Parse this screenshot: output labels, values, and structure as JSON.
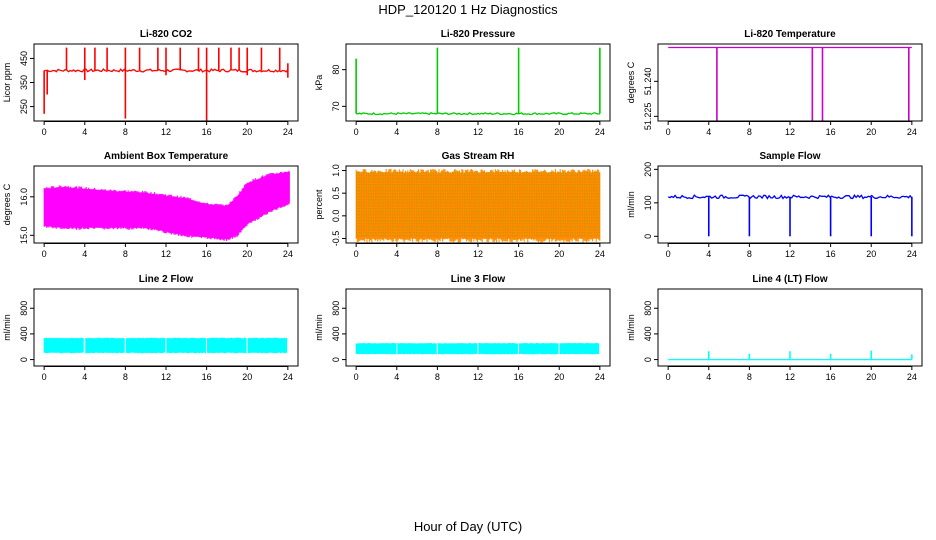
{
  "figure": {
    "title": "HDP_120120  1 Hz Diagnostics",
    "xlabel": "Hour of Day (UTC)"
  },
  "chart_data": [
    {
      "type": "line",
      "title": "Li-820 CO2",
      "ylabel": "Licor ppm",
      "color": "#ff0000",
      "xlim": [
        -1,
        25
      ],
      "ylim": [
        190,
        510
      ],
      "x_ticks": [
        0,
        4,
        8,
        12,
        16,
        20,
        24
      ],
      "y_ticks": [
        250,
        350,
        450
      ],
      "baseline": 400,
      "noise": 6,
      "segments": [
        [
          0.0,
          24.0
        ]
      ],
      "events": [
        {
          "x": 0.0,
          "low": 220,
          "high": 400
        },
        {
          "x": 0.3,
          "low": 300,
          "high": 400
        },
        {
          "x": 2.2,
          "low": 400,
          "high": 495
        },
        {
          "x": 4.0,
          "low": 360,
          "high": 495
        },
        {
          "x": 5.0,
          "low": 400,
          "high": 495
        },
        {
          "x": 6.2,
          "low": 400,
          "high": 495
        },
        {
          "x": 8.0,
          "low": 200,
          "high": 495
        },
        {
          "x": 9.4,
          "low": 400,
          "high": 495
        },
        {
          "x": 11.2,
          "low": 400,
          "high": 495
        },
        {
          "x": 12.0,
          "low": 380,
          "high": 495
        },
        {
          "x": 13.4,
          "low": 400,
          "high": 495
        },
        {
          "x": 15.2,
          "low": 400,
          "high": 495
        },
        {
          "x": 16.0,
          "low": 190,
          "high": 495
        },
        {
          "x": 17.2,
          "low": 400,
          "high": 495
        },
        {
          "x": 18.4,
          "low": 400,
          "high": 495
        },
        {
          "x": 19.2,
          "low": 400,
          "high": 495
        },
        {
          "x": 20.0,
          "low": 380,
          "high": 495
        },
        {
          "x": 21.4,
          "low": 400,
          "high": 495
        },
        {
          "x": 23.2,
          "low": 400,
          "high": 495
        },
        {
          "x": 24.0,
          "low": 370,
          "high": 430
        }
      ]
    },
    {
      "type": "line",
      "title": "Li-820 Pressure",
      "ylabel": "kPa",
      "color": "#00cc00",
      "xlim": [
        -1,
        25
      ],
      "ylim": [
        66,
        87
      ],
      "x_ticks": [
        0,
        4,
        8,
        12,
        16,
        20,
        24
      ],
      "y_ticks": [
        70,
        80
      ],
      "baseline": 68,
      "noise": 0.25,
      "segments": [
        [
          0.0,
          24.0
        ]
      ],
      "events": [
        {
          "x": 0.0,
          "low": 68,
          "high": 83
        },
        {
          "x": 8.0,
          "low": 68,
          "high": 86
        },
        {
          "x": 16.0,
          "low": 68,
          "high": 86
        },
        {
          "x": 24.0,
          "low": 68,
          "high": 86
        }
      ]
    },
    {
      "type": "line",
      "title": "Li-820 Temperature",
      "ylabel": "degrees C",
      "color": "#cc00cc",
      "xlim": [
        -1,
        25
      ],
      "ylim": [
        51.223,
        51.256
      ],
      "x_ticks": [
        0,
        4,
        8,
        12,
        16,
        20,
        24
      ],
      "y_ticks": [
        51.225,
        51.24
      ],
      "y_tick_labels": [
        "51.225",
        "51.240"
      ],
      "baseline": 51.2545,
      "noise": 0,
      "segments": [
        [
          0.0,
          24.0
        ]
      ],
      "events": [
        {
          "x": 4.8,
          "low": 51.2225,
          "high": 51.2545
        },
        {
          "x": 14.2,
          "low": 51.2225,
          "high": 51.2545
        },
        {
          "x": 15.2,
          "low": 51.2225,
          "high": 51.2545
        },
        {
          "x": 23.7,
          "low": 51.2225,
          "high": 51.2545
        }
      ]
    },
    {
      "type": "band",
      "title": "Ambient Box Temperature",
      "ylabel": "degrees C",
      "color": "#ff00ff",
      "xlim": [
        -1,
        25
      ],
      "ylim": [
        14.8,
        16.8
      ],
      "x_ticks": [
        0,
        4,
        8,
        12,
        16,
        20,
        24
      ],
      "y_ticks": [
        15.0,
        16.0
      ],
      "y_tick_labels": [
        "15.0",
        "16.0"
      ],
      "segments": [
        [
          0.0,
          24.2
        ]
      ],
      "lower_x": [
        0,
        2,
        6,
        10,
        14,
        16,
        18,
        19,
        20,
        22,
        24.2
      ],
      "lower_y": [
        15.25,
        15.2,
        15.2,
        15.2,
        15.0,
        14.95,
        14.9,
        15.0,
        15.3,
        15.6,
        15.85
      ],
      "upper_x": [
        0,
        2,
        6,
        10,
        14,
        16,
        18,
        19,
        20,
        22,
        24.2
      ],
      "upper_y": [
        16.2,
        16.25,
        16.15,
        16.1,
        15.95,
        15.8,
        15.75,
        16.0,
        16.35,
        16.55,
        16.65
      ]
    },
    {
      "type": "band",
      "title": "Gas Stream RH",
      "ylabel": "percent",
      "color": "#ff8c00",
      "dot_color": "#999900",
      "xlim": [
        -1,
        25
      ],
      "ylim": [
        -0.6,
        1.1
      ],
      "x_ticks": [
        0,
        4,
        8,
        12,
        16,
        20,
        24
      ],
      "y_ticks": [
        -0.5,
        0.0,
        0.5,
        1.0
      ],
      "y_tick_labels": [
        "-0.5",
        "0.0",
        "0.5",
        "1.0"
      ],
      "segments": [
        [
          0.0,
          24.0
        ]
      ],
      "lower_x": [
        0,
        24
      ],
      "lower_y": [
        -0.5,
        -0.5
      ],
      "upper_x": [
        0,
        24
      ],
      "upper_y": [
        0.95,
        0.95
      ]
    },
    {
      "type": "line",
      "title": "Sample Flow",
      "ylabel": "ml/min",
      "color": "#0000ff",
      "xlim": [
        -1,
        25
      ],
      "ylim": [
        -20,
        210
      ],
      "x_ticks": [
        0,
        4,
        8,
        12,
        16,
        20,
        24
      ],
      "y_ticks": [
        0,
        100,
        200
      ],
      "baseline": 118,
      "noise": 5,
      "segments": [
        [
          0.0,
          24.0
        ]
      ],
      "events": [
        {
          "x": 4.0,
          "low": 0,
          "high": 118
        },
        {
          "x": 8.0,
          "low": 0,
          "high": 118
        },
        {
          "x": 12.0,
          "low": 0,
          "high": 118
        },
        {
          "x": 16.0,
          "low": 0,
          "high": 118
        },
        {
          "x": 20.0,
          "low": 0,
          "high": 118
        },
        {
          "x": 24.0,
          "low": 0,
          "high": 118
        }
      ]
    },
    {
      "type": "band",
      "title": "Line 2 Flow",
      "ylabel": "ml/min",
      "color": "#00ffff",
      "xlim": [
        -1,
        25
      ],
      "ylim": [
        -100,
        1100
      ],
      "x_ticks": [
        0,
        4,
        8,
        12,
        16,
        20,
        24
      ],
      "y_ticks": [
        0,
        400,
        800
      ],
      "segments": [
        [
          0.0,
          3.9
        ],
        [
          4.1,
          7.9
        ],
        [
          8.1,
          11.9
        ],
        [
          12.1,
          15.9
        ],
        [
          16.1,
          19.9
        ],
        [
          20.1,
          23.9
        ]
      ],
      "lower_x": [
        0,
        24
      ],
      "lower_y": [
        110,
        110
      ],
      "upper_x": [
        0,
        24
      ],
      "upper_y": [
        330,
        330
      ]
    },
    {
      "type": "band",
      "title": "Line 3 Flow",
      "ylabel": "ml/min",
      "color": "#00ffff",
      "xlim": [
        -1,
        25
      ],
      "ylim": [
        -100,
        1100
      ],
      "x_ticks": [
        0,
        4,
        8,
        12,
        16,
        20,
        24
      ],
      "y_ticks": [
        0,
        400,
        800
      ],
      "segments": [
        [
          0.0,
          3.9
        ],
        [
          4.1,
          7.9
        ],
        [
          8.1,
          11.9
        ],
        [
          12.1,
          15.9
        ],
        [
          16.1,
          19.9
        ],
        [
          20.1,
          23.9
        ]
      ],
      "lower_x": [
        0,
        24
      ],
      "lower_y": [
        90,
        90
      ],
      "upper_x": [
        0,
        24
      ],
      "upper_y": [
        250,
        250
      ]
    },
    {
      "type": "line",
      "title": "Line 4 (LT) Flow",
      "ylabel": "ml/min",
      "color": "#00ffff",
      "xlim": [
        -1,
        25
      ],
      "ylim": [
        -100,
        1100
      ],
      "x_ticks": [
        0,
        4,
        8,
        12,
        16,
        20,
        24
      ],
      "y_ticks": [
        0,
        400,
        800
      ],
      "baseline": 0,
      "noise": 0,
      "segments": [
        [
          0.0,
          24.0
        ]
      ],
      "events": [
        {
          "x": 4.0,
          "low": 0,
          "high": 130
        },
        {
          "x": 8.0,
          "low": 0,
          "high": 90
        },
        {
          "x": 12.0,
          "low": 0,
          "high": 130
        },
        {
          "x": 16.0,
          "low": 0,
          "high": 90
        },
        {
          "x": 20.0,
          "low": 0,
          "high": 140
        },
        {
          "x": 24.0,
          "low": 0,
          "high": 80
        }
      ]
    }
  ]
}
